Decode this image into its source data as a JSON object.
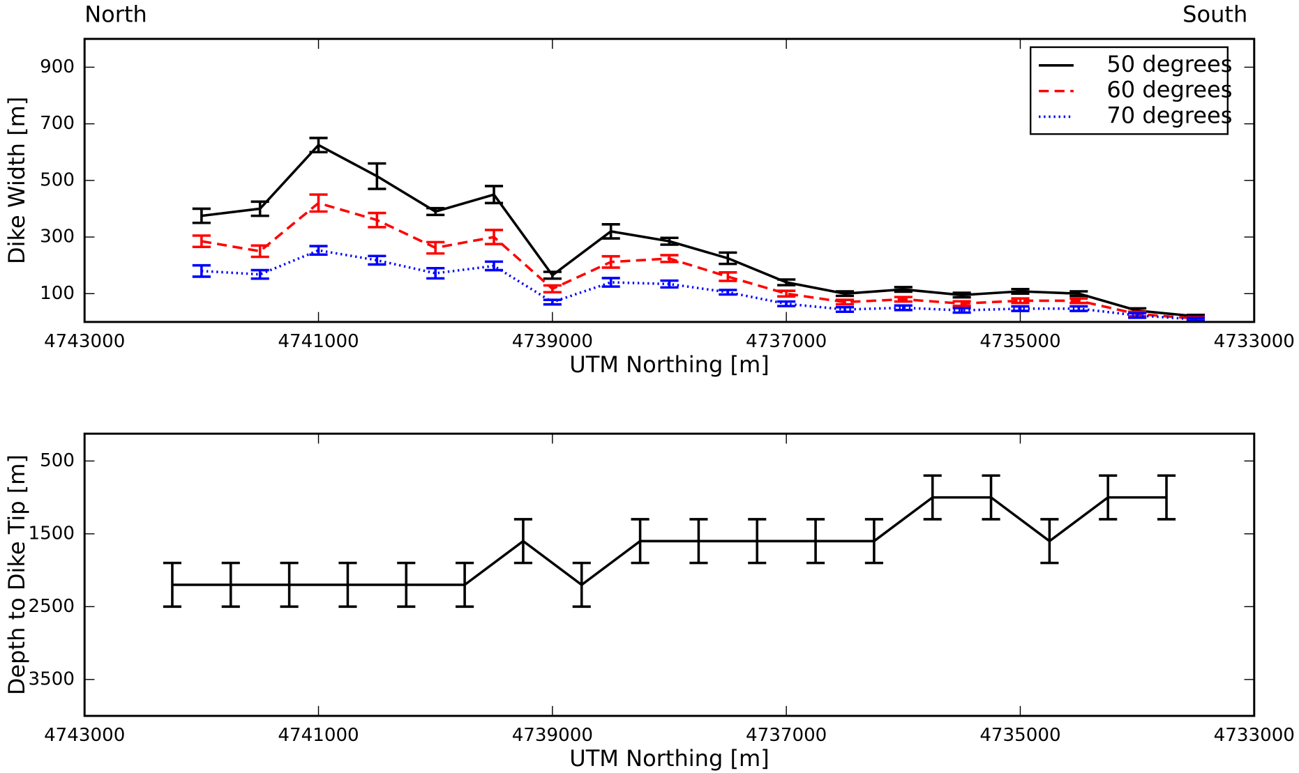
{
  "chart_data": [
    {
      "type": "line",
      "annotations": [
        "North",
        "South"
      ],
      "xlabel": "UTM Northing [m]",
      "ylabel": "Dike Width [m]",
      "x": [
        4742000,
        4741500,
        4741000,
        4740500,
        4740000,
        4739500,
        4739000,
        4738500,
        4738000,
        4737500,
        4737000,
        4736500,
        4736000,
        4735500,
        4735000,
        4734500,
        4734000,
        4733500
      ],
      "series": [
        {
          "name": "50 degrees",
          "color": "#000000",
          "linestyle": "solid",
          "values": [
            375,
            400,
            625,
            515,
            390,
            450,
            165,
            320,
            285,
            225,
            140,
            100,
            115,
            95,
            108,
            100,
            40,
            20
          ],
          "errors": [
            25,
            25,
            25,
            45,
            12,
            30,
            12,
            25,
            12,
            20,
            10,
            8,
            8,
            8,
            8,
            8,
            8,
            5
          ]
        },
        {
          "name": "60 degrees",
          "color": "#ff0000",
          "linestyle": "dashed",
          "values": [
            285,
            250,
            420,
            360,
            262,
            300,
            117,
            212,
            224,
            160,
            100,
            70,
            80,
            65,
            75,
            75,
            28,
            12
          ],
          "errors": [
            20,
            20,
            30,
            25,
            20,
            25,
            12,
            20,
            12,
            15,
            10,
            8,
            8,
            8,
            8,
            8,
            8,
            5
          ]
        },
        {
          "name": "70 degrees",
          "color": "#0000ff",
          "linestyle": "dotted",
          "values": [
            180,
            168,
            253,
            218,
            172,
            198,
            70,
            140,
            134,
            105,
            64,
            44,
            50,
            41,
            47,
            47,
            23,
            9
          ],
          "errors": [
            20,
            15,
            15,
            15,
            18,
            15,
            8,
            15,
            12,
            8,
            8,
            8,
            8,
            8,
            8,
            8,
            8,
            5
          ]
        }
      ],
      "xlim": [
        4743000,
        4733000
      ],
      "xticks": [
        4743000,
        4741000,
        4739000,
        4737000,
        4735000,
        4733000
      ],
      "ylim": [
        0,
        1000
      ],
      "yticks": [
        100,
        300,
        500,
        700,
        900
      ],
      "legend": "upper right"
    },
    {
      "type": "line",
      "xlabel": "UTM Northing [m]",
      "ylabel": "Depth to Dike Tip [m]",
      "x": [
        4742250,
        4741750,
        4741250,
        4740750,
        4740250,
        4739750,
        4739250,
        4738750,
        4738250,
        4737750,
        4737250,
        4736750,
        4736250,
        4735750,
        4735250,
        4734750,
        4734250,
        4733750
      ],
      "series": [
        {
          "color": "#000000",
          "linestyle": "solid",
          "values": [
            2200,
            2200,
            2200,
            2200,
            2200,
            2200,
            1600,
            2200,
            1600,
            1600,
            1600,
            1600,
            1600,
            1000,
            1000,
            1600,
            1000,
            1000
          ],
          "errors": [
            300,
            300,
            300,
            300,
            300,
            300,
            300,
            300,
            300,
            300,
            300,
            300,
            300,
            300,
            300,
            300,
            300,
            300
          ]
        }
      ],
      "xlim": [
        4743000,
        4733000
      ],
      "xticks": [
        4743000,
        4741000,
        4739000,
        4737000,
        4735000,
        4733000
      ],
      "ylim": [
        4000,
        125
      ],
      "yticks": [
        500,
        1500,
        2500,
        3500
      ]
    }
  ]
}
